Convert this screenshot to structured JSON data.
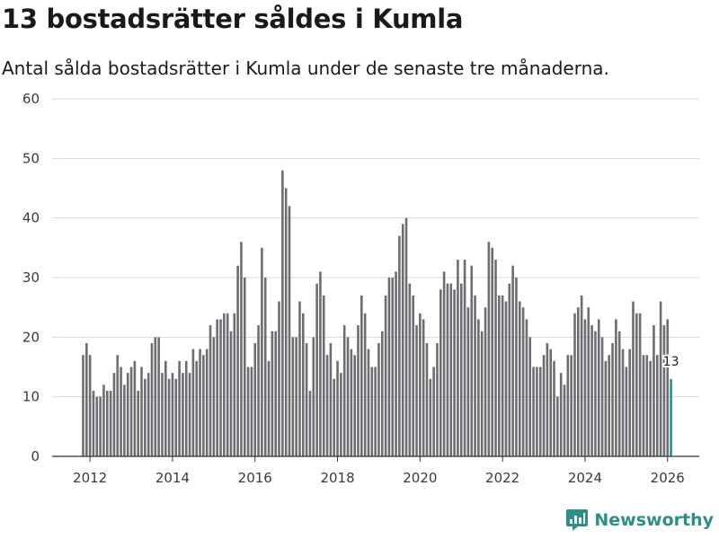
{
  "chart_data": {
    "type": "bar",
    "title": "13 bostadsrätter såldes i Kumla",
    "subtitle": "Antal sålda bostadsrätter i Kumla under de senaste tre månaderna.",
    "xlabel": "",
    "ylabel": "",
    "ylim": [
      0,
      60
    ],
    "y_ticks": [
      "0",
      "10",
      "20",
      "30",
      "40",
      "50",
      "60"
    ],
    "x_tick_labels": [
      "2012",
      "2014",
      "2016",
      "2018",
      "2020",
      "2022",
      "2024",
      "2026"
    ],
    "start_period": "2011-11",
    "series": [
      {
        "name": "Sålda bostadsrätter",
        "values": [
          17,
          19,
          17,
          11,
          10,
          10,
          12,
          11,
          11,
          14,
          17,
          15,
          12,
          14,
          15,
          16,
          11,
          15,
          13,
          14,
          19,
          20,
          20,
          14,
          16,
          13,
          14,
          13,
          16,
          14,
          16,
          14,
          18,
          16,
          18,
          17,
          18,
          22,
          20,
          23,
          23,
          24,
          24,
          21,
          24,
          32,
          36,
          30,
          15,
          15,
          19,
          22,
          35,
          30,
          16,
          21,
          21,
          26,
          48,
          45,
          42,
          20,
          20,
          26,
          24,
          19,
          11,
          20,
          29,
          31,
          27,
          17,
          19,
          13,
          16,
          14,
          22,
          20,
          18,
          17,
          22,
          27,
          24,
          18,
          15,
          15,
          19,
          21,
          27,
          30,
          30,
          31,
          37,
          39,
          40,
          29,
          27,
          22,
          24,
          23,
          19,
          13,
          15,
          19,
          28,
          31,
          29,
          29,
          28,
          33,
          29,
          33,
          25,
          32,
          27,
          23,
          21,
          25,
          36,
          35,
          33,
          27,
          27,
          26,
          29,
          32,
          30,
          26,
          25,
          23,
          20,
          15,
          15,
          15,
          17,
          19,
          18,
          16,
          10,
          14,
          12,
          17,
          17,
          24,
          25,
          27,
          23,
          25,
          22,
          21,
          23,
          20,
          16,
          17,
          19,
          23,
          21,
          18,
          15,
          18,
          26,
          24,
          24,
          17,
          17,
          16,
          22,
          17,
          26,
          22,
          23,
          13
        ],
        "color": "#6e6d72",
        "highlight_color": "#20968c",
        "highlight_last": true
      }
    ],
    "annotation": "13"
  },
  "brand": {
    "name": "Newsworthy",
    "color": "#2e8f89"
  }
}
